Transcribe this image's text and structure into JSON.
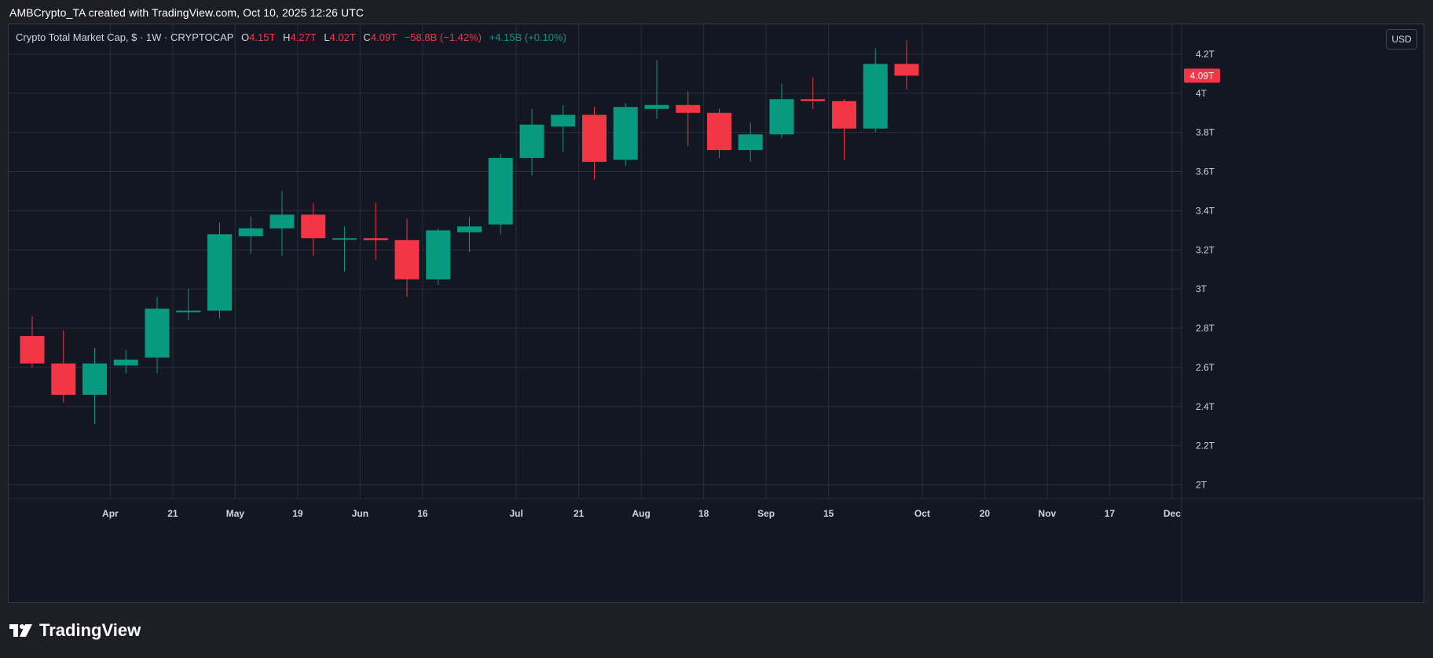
{
  "caption": "AMBCrypto_TA created with TradingView.com, Oct 10, 2025 12:26 UTC",
  "legend": {
    "symbol": "Crypto Total Market Cap, $ · 1W · CRYPTOCAP",
    "o_label": "O",
    "o_value": "4.15T",
    "h_label": "H",
    "h_value": "4.27T",
    "l_label": "L",
    "l_value": "4.02T",
    "c_label": "C",
    "c_value": "4.09T",
    "change": "−58.8B (−1.42%)",
    "volume": "+4.15B (+0.10%)"
  },
  "currency_button": "USD",
  "brand": "TradingView",
  "colors": {
    "up": "#089981",
    "down": "#f23645",
    "background": "#131722",
    "grid": "#2a2e39",
    "text": "#d1d4dc"
  },
  "chart_data": {
    "type": "candlestick",
    "title": "Crypto Total Market Cap, $ · 1W · CRYPTOCAP",
    "interval": "1W",
    "ylim": [
      1.95,
      4.32
    ],
    "yticks": [
      2.0,
      2.2,
      2.4,
      2.6,
      2.8,
      3.0,
      3.2,
      3.4,
      3.6,
      3.8,
      4.0,
      4.2
    ],
    "ytick_labels": [
      "2T",
      "2.2T",
      "2.4T",
      "2.6T",
      "2.8T",
      "3T",
      "3.2T",
      "3.4T",
      "3.6T",
      "3.8T",
      "4T",
      "4.2T"
    ],
    "last_price_label": "4.09T",
    "last_price": 4.09,
    "xticks": [
      {
        "index": 2.5,
        "label": "Apr"
      },
      {
        "index": 4.5,
        "label": "21"
      },
      {
        "index": 6.5,
        "label": "May"
      },
      {
        "index": 8.5,
        "label": "19"
      },
      {
        "index": 10.5,
        "label": "Jun"
      },
      {
        "index": 12.5,
        "label": "16"
      },
      {
        "index": 15.5,
        "label": "Jul"
      },
      {
        "index": 17.5,
        "label": "21"
      },
      {
        "index": 19.5,
        "label": "Aug"
      },
      {
        "index": 21.5,
        "label": "18"
      },
      {
        "index": 23.5,
        "label": "Sep"
      },
      {
        "index": 25.5,
        "label": "15"
      },
      {
        "index": 28.5,
        "label": "Oct"
      },
      {
        "index": 30.5,
        "label": "20"
      },
      {
        "index": 32.5,
        "label": "Nov"
      },
      {
        "index": 34.5,
        "label": "17"
      },
      {
        "index": 36.5,
        "label": "Dec"
      }
    ],
    "candles": [
      {
        "o": 2.76,
        "h": 2.86,
        "l": 2.6,
        "c": 2.62
      },
      {
        "o": 2.62,
        "h": 2.79,
        "l": 2.42,
        "c": 2.46
      },
      {
        "o": 2.46,
        "h": 2.7,
        "l": 2.31,
        "c": 2.62
      },
      {
        "o": 2.61,
        "h": 2.69,
        "l": 2.57,
        "c": 2.64
      },
      {
        "o": 2.65,
        "h": 2.96,
        "l": 2.57,
        "c": 2.9
      },
      {
        "o": 2.89,
        "h": 3.0,
        "l": 2.84,
        "c": 2.89
      },
      {
        "o": 2.89,
        "h": 3.34,
        "l": 2.85,
        "c": 3.28
      },
      {
        "o": 3.27,
        "h": 3.37,
        "l": 3.18,
        "c": 3.31
      },
      {
        "o": 3.31,
        "h": 3.5,
        "l": 3.17,
        "c": 3.38
      },
      {
        "o": 3.38,
        "h": 3.44,
        "l": 3.17,
        "c": 3.26
      },
      {
        "o": 3.26,
        "h": 3.32,
        "l": 3.09,
        "c": 3.26
      },
      {
        "o": 3.26,
        "h": 3.44,
        "l": 3.15,
        "c": 3.25
      },
      {
        "o": 3.25,
        "h": 3.36,
        "l": 2.96,
        "c": 3.05
      },
      {
        "o": 3.05,
        "h": 3.31,
        "l": 3.02,
        "c": 3.3
      },
      {
        "o": 3.29,
        "h": 3.37,
        "l": 3.19,
        "c": 3.32
      },
      {
        "o": 3.33,
        "h": 3.69,
        "l": 3.28,
        "c": 3.67
      },
      {
        "o": 3.67,
        "h": 3.92,
        "l": 3.58,
        "c": 3.84
      },
      {
        "o": 3.83,
        "h": 3.94,
        "l": 3.7,
        "c": 3.89
      },
      {
        "o": 3.89,
        "h": 3.93,
        "l": 3.56,
        "c": 3.65
      },
      {
        "o": 3.66,
        "h": 3.95,
        "l": 3.63,
        "c": 3.93
      },
      {
        "o": 3.92,
        "h": 4.17,
        "l": 3.87,
        "c": 3.94
      },
      {
        "o": 3.94,
        "h": 4.01,
        "l": 3.73,
        "c": 3.9
      },
      {
        "o": 3.9,
        "h": 3.92,
        "l": 3.67,
        "c": 3.71
      },
      {
        "o": 3.71,
        "h": 3.85,
        "l": 3.65,
        "c": 3.79
      },
      {
        "o": 3.79,
        "h": 4.05,
        "l": 3.77,
        "c": 3.97
      },
      {
        "o": 3.97,
        "h": 4.08,
        "l": 3.92,
        "c": 3.96
      },
      {
        "o": 3.96,
        "h": 3.97,
        "l": 3.66,
        "c": 3.82
      },
      {
        "o": 3.82,
        "h": 4.23,
        "l": 3.8,
        "c": 4.15
      },
      {
        "o": 4.15,
        "h": 4.27,
        "l": 4.02,
        "c": 4.09
      }
    ]
  }
}
